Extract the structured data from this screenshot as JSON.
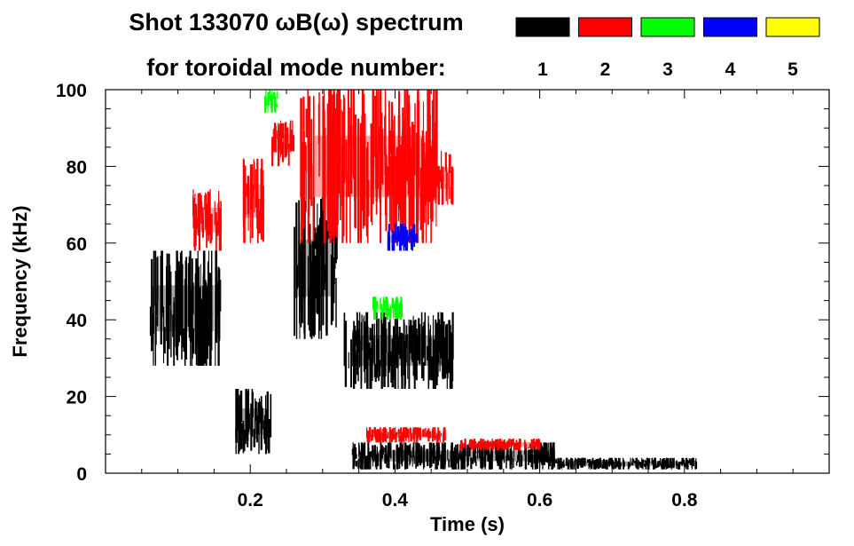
{
  "chart_data": {
    "type": "heatmap",
    "title_line1": "Shot 133070 ωB(ω) spectrum",
    "title_line2": "for toroidal mode number:",
    "xlabel": "Time (s)",
    "ylabel": "Frequency (kHz)",
    "xlim": [
      0.0,
      1.0
    ],
    "ylim": [
      0,
      100
    ],
    "x_ticks": [
      0.2,
      0.4,
      0.6,
      0.8
    ],
    "x_tick_labels": [
      "0.2",
      "0.4",
      "0.6",
      "0.8"
    ],
    "y_ticks": [
      0,
      20,
      40,
      60,
      80,
      100
    ],
    "y_tick_labels": [
      "0",
      "20",
      "40",
      "60",
      "80",
      "100"
    ],
    "legend_position": "top-right",
    "modes": [
      {
        "n": 1,
        "label": "1",
        "color": "#000000"
      },
      {
        "n": 2,
        "label": "2",
        "color": "#ff0000"
      },
      {
        "n": 3,
        "label": "3",
        "color": "#00ff00"
      },
      {
        "n": 4,
        "label": "4",
        "color": "#0000ff"
      },
      {
        "n": 5,
        "label": "5",
        "color": "#ffff00"
      }
    ],
    "features": [
      {
        "mode": 1,
        "t": [
          0.06,
          0.16
        ],
        "f": [
          28,
          58
        ]
      },
      {
        "mode": 1,
        "t": [
          0.18,
          0.23
        ],
        "f": [
          5,
          22
        ]
      },
      {
        "mode": 1,
        "t": [
          0.26,
          0.32
        ],
        "f": [
          35,
          72
        ]
      },
      {
        "mode": 1,
        "t": [
          0.33,
          0.48
        ],
        "f": [
          22,
          42
        ]
      },
      {
        "mode": 1,
        "t": [
          0.34,
          0.62
        ],
        "f": [
          1,
          8
        ]
      },
      {
        "mode": 1,
        "t": [
          0.62,
          0.82
        ],
        "f": [
          1,
          4
        ]
      },
      {
        "mode": 2,
        "t": [
          0.12,
          0.16
        ],
        "f": [
          58,
          74
        ]
      },
      {
        "mode": 2,
        "t": [
          0.19,
          0.22
        ],
        "f": [
          60,
          82
        ]
      },
      {
        "mode": 2,
        "t": [
          0.23,
          0.26
        ],
        "f": [
          80,
          92
        ]
      },
      {
        "mode": 2,
        "t": [
          0.27,
          0.46
        ],
        "f": [
          60,
          100
        ]
      },
      {
        "mode": 2,
        "t": [
          0.44,
          0.48
        ],
        "f": [
          70,
          84
        ]
      },
      {
        "mode": 2,
        "t": [
          0.36,
          0.47
        ],
        "f": [
          8,
          12
        ]
      },
      {
        "mode": 2,
        "t": [
          0.49,
          0.6
        ],
        "f": [
          6,
          9
        ]
      },
      {
        "mode": 3,
        "t": [
          0.37,
          0.41
        ],
        "f": [
          40,
          46
        ]
      },
      {
        "mode": 3,
        "t": [
          0.22,
          0.24
        ],
        "f": [
          94,
          100
        ]
      },
      {
        "mode": 4,
        "t": [
          0.39,
          0.43
        ],
        "f": [
          58,
          65
        ]
      }
    ]
  }
}
